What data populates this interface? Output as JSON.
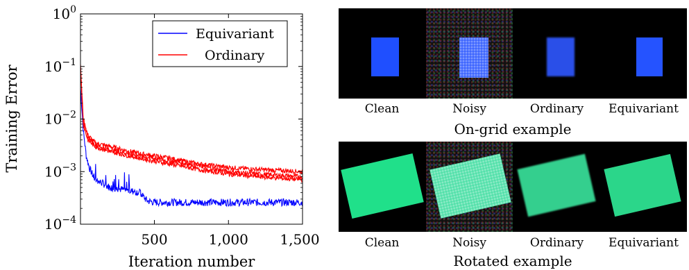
{
  "chart_data": {
    "type": "line",
    "xlabel": "Iteration number",
    "ylabel": "Training Error",
    "xlim": [
      1,
      1500
    ],
    "ylim": [
      0.0001,
      1
    ],
    "yscale": "log",
    "xticks": [
      500,
      1000,
      1500
    ],
    "xtick_labels": [
      "500",
      "1,000",
      "1,500"
    ],
    "yticks": [
      0.0001,
      0.001,
      0.01,
      0.1,
      1
    ],
    "ytick_exponents": [
      "−4",
      "−3",
      "−2",
      "−1",
      "0"
    ],
    "legend_position": "top-right",
    "series": [
      {
        "name": "Equivariant",
        "color": "#0000ff",
        "x": [
          1,
          20,
          40,
          60,
          80,
          100,
          150,
          200,
          300,
          400,
          450,
          500,
          600,
          800,
          1000,
          1200,
          1500
        ],
        "y": [
          0.04,
          0.006,
          0.002,
          0.0012,
          0.0009,
          0.0007,
          0.0006,
          0.0005,
          0.00045,
          0.0004,
          0.00028,
          0.00026,
          0.00026,
          0.00026,
          0.00026,
          0.00026,
          0.00026
        ]
      },
      {
        "name": "Ordinary",
        "color": "#ff0000",
        "x": [
          1,
          20,
          50,
          100,
          200,
          400,
          600,
          800,
          1000,
          1200,
          1500
        ],
        "y": [
          0.1,
          0.01,
          0.005,
          0.0035,
          0.003,
          0.0022,
          0.0018,
          0.0014,
          0.0012,
          0.0011,
          0.001
        ]
      },
      {
        "name": "",
        "color": "#ff0000",
        "x": [
          1,
          20,
          50,
          100,
          200,
          400,
          600,
          800,
          1000,
          1200,
          1500
        ],
        "y": [
          0.1,
          0.009,
          0.0045,
          0.0032,
          0.0026,
          0.002,
          0.0016,
          0.0013,
          0.001,
          0.0009,
          0.0008
        ]
      },
      {
        "name": "",
        "color": "#ff0000",
        "x": [
          1,
          20,
          50,
          100,
          200,
          400,
          600,
          800,
          1000,
          1200,
          1500
        ],
        "y": [
          0.1,
          0.008,
          0.004,
          0.003,
          0.0024,
          0.0018,
          0.0014,
          0.0011,
          0.0009,
          0.0008,
          0.0007
        ]
      }
    ]
  },
  "panels": {
    "on_grid": {
      "title": "On-grid example",
      "captions": [
        "Clean",
        "Noisy",
        "Ordinary",
        "Equivariant"
      ],
      "square_color": "#1f4fff"
    },
    "rotated": {
      "title": "Rotated example",
      "captions": [
        "Clean",
        "Noisy",
        "Ordinary",
        "Equivariant"
      ],
      "square_color": "#20e08a"
    }
  }
}
